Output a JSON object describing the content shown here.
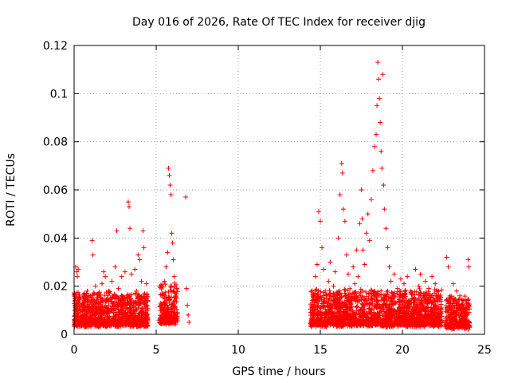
{
  "chart_data": {
    "type": "scatter",
    "title": "Day 016 of 2026, Rate Of TEC Index for receiver djig",
    "xlabel": "GPS time / hours",
    "ylabel": "ROTI / TECUs",
    "xlim": [
      0,
      25
    ],
    "ylim": [
      0,
      0.12
    ],
    "xticks": [
      0,
      5,
      10,
      15,
      20,
      25
    ],
    "xtick_labels": [
      "0",
      "5",
      "10",
      "15",
      "20",
      "25"
    ],
    "yticks": [
      0,
      0.02,
      0.04,
      0.06,
      0.08,
      0.1,
      0.12
    ],
    "ytick_labels": [
      "0",
      "0.02",
      "0.04",
      "0.06",
      "0.08",
      "0.1",
      "0.12"
    ],
    "grid": true,
    "marker": "+",
    "color": "#ff0000",
    "series": [
      {
        "name": "ROTI",
        "points": [
          [
            0.1,
            0.028
          ],
          [
            0.15,
            0.026
          ],
          [
            0.2,
            0.024
          ],
          [
            0.25,
            0.027
          ],
          [
            0.1,
            0.012
          ],
          [
            0.2,
            0.008
          ],
          [
            0.3,
            0.015
          ],
          [
            0.4,
            0.005
          ],
          [
            0.5,
            0.01
          ],
          [
            0.6,
            0.014
          ],
          [
            0.7,
            0.007
          ],
          [
            0.8,
            0.018
          ],
          [
            0.9,
            0.011
          ],
          [
            1.0,
            0.016
          ],
          [
            1.1,
            0.039
          ],
          [
            1.15,
            0.033
          ],
          [
            1.2,
            0.012
          ],
          [
            1.3,
            0.02
          ],
          [
            1.4,
            0.009
          ],
          [
            1.5,
            0.017
          ],
          [
            1.6,
            0.013
          ],
          [
            1.7,
            0.021
          ],
          [
            1.8,
            0.026
          ],
          [
            1.9,
            0.024
          ],
          [
            2.0,
            0.011
          ],
          [
            2.1,
            0.018
          ],
          [
            2.2,
            0.015
          ],
          [
            2.3,
            0.022
          ],
          [
            2.4,
            0.01
          ],
          [
            2.5,
            0.028
          ],
          [
            2.6,
            0.043
          ],
          [
            2.7,
            0.019
          ],
          [
            2.8,
            0.014
          ],
          [
            2.9,
            0.024
          ],
          [
            3.0,
            0.012
          ],
          [
            3.1,
            0.026
          ],
          [
            3.2,
            0.016
          ],
          [
            3.3,
            0.055
          ],
          [
            3.35,
            0.053
          ],
          [
            3.4,
            0.044
          ],
          [
            3.5,
            0.025
          ],
          [
            3.6,
            0.013
          ],
          [
            3.7,
            0.027
          ],
          [
            3.8,
            0.018
          ],
          [
            3.9,
            0.033
          ],
          [
            4.0,
            0.031
          ],
          [
            4.1,
            0.022
          ],
          [
            4.2,
            0.043
          ],
          [
            4.25,
            0.036
          ],
          [
            4.3,
            0.015
          ],
          [
            4.4,
            0.021
          ],
          [
            5.3,
            0.01
          ],
          [
            5.4,
            0.016
          ],
          [
            5.5,
            0.022
          ],
          [
            5.6,
            0.028
          ],
          [
            5.7,
            0.034
          ],
          [
            5.75,
            0.069
          ],
          [
            5.8,
            0.066
          ],
          [
            5.85,
            0.062
          ],
          [
            5.9,
            0.058
          ],
          [
            5.95,
            0.042
          ],
          [
            6.0,
            0.038
          ],
          [
            6.05,
            0.031
          ],
          [
            6.1,
            0.024
          ],
          [
            6.2,
            0.015
          ],
          [
            6.3,
            0.009
          ],
          [
            6.8,
            0.057
          ],
          [
            6.85,
            0.019
          ],
          [
            6.9,
            0.012
          ],
          [
            6.95,
            0.008
          ],
          [
            7.0,
            0.005
          ],
          [
            14.5,
            0.009
          ],
          [
            14.6,
            0.016
          ],
          [
            14.7,
            0.024
          ],
          [
            14.8,
            0.029
          ],
          [
            14.9,
            0.051
          ],
          [
            15.0,
            0.047
          ],
          [
            15.1,
            0.036
          ],
          [
            15.2,
            0.027
          ],
          [
            15.3,
            0.018
          ],
          [
            15.4,
            0.012
          ],
          [
            15.5,
            0.022
          ],
          [
            15.6,
            0.03
          ],
          [
            15.7,
            0.014
          ],
          [
            15.8,
            0.02
          ],
          [
            15.9,
            0.026
          ],
          [
            16.0,
            0.011
          ],
          [
            16.1,
            0.04
          ],
          [
            16.2,
            0.058
          ],
          [
            16.3,
            0.071
          ],
          [
            16.35,
            0.067
          ],
          [
            16.4,
            0.052
          ],
          [
            16.5,
            0.047
          ],
          [
            16.6,
            0.033
          ],
          [
            16.7,
            0.025
          ],
          [
            16.8,
            0.019
          ],
          [
            16.9,
            0.014
          ],
          [
            17.0,
            0.028
          ],
          [
            17.1,
            0.021
          ],
          [
            17.2,
            0.035
          ],
          [
            17.3,
            0.024
          ],
          [
            17.4,
            0.046
          ],
          [
            17.5,
            0.06
          ],
          [
            17.55,
            0.048
          ],
          [
            17.6,
            0.035
          ],
          [
            17.7,
            0.029
          ],
          [
            17.8,
            0.042
          ],
          [
            17.9,
            0.05
          ],
          [
            18.0,
            0.039
          ],
          [
            18.1,
            0.056
          ],
          [
            18.2,
            0.068
          ],
          [
            18.3,
            0.078
          ],
          [
            18.4,
            0.083
          ],
          [
            18.45,
            0.095
          ],
          [
            18.5,
            0.113
          ],
          [
            18.55,
            0.106
          ],
          [
            18.6,
            0.098
          ],
          [
            18.65,
            0.088
          ],
          [
            18.7,
            0.076
          ],
          [
            18.75,
            0.069
          ],
          [
            18.8,
            0.108
          ],
          [
            18.85,
            0.062
          ],
          [
            18.9,
            0.052
          ],
          [
            19.0,
            0.044
          ],
          [
            19.1,
            0.036
          ],
          [
            19.2,
            0.028
          ],
          [
            19.3,
            0.022
          ],
          [
            19.4,
            0.017
          ],
          [
            19.5,
            0.025
          ],
          [
            19.6,
            0.013
          ],
          [
            19.7,
            0.019
          ],
          [
            19.8,
            0.011
          ],
          [
            19.9,
            0.023
          ],
          [
            20.0,
            0.016
          ],
          [
            20.1,
            0.021
          ],
          [
            20.2,
            0.009
          ],
          [
            20.3,
            0.024
          ],
          [
            20.4,
            0.014
          ],
          [
            20.5,
            0.018
          ],
          [
            20.6,
            0.007
          ],
          [
            20.7,
            0.015
          ],
          [
            20.8,
            0.027
          ],
          [
            20.9,
            0.012
          ],
          [
            21.0,
            0.02
          ],
          [
            21.1,
            0.025
          ],
          [
            21.2,
            0.01
          ],
          [
            21.3,
            0.017
          ],
          [
            21.4,
            0.022
          ],
          [
            21.5,
            0.013
          ],
          [
            21.6,
            0.019
          ],
          [
            21.7,
            0.008
          ],
          [
            21.8,
            0.024
          ],
          [
            21.9,
            0.015
          ],
          [
            22.0,
            0.021
          ],
          [
            22.1,
            0.011
          ],
          [
            22.2,
            0.018
          ],
          [
            22.3,
            0.009
          ],
          [
            22.7,
            0.032
          ],
          [
            22.8,
            0.028
          ],
          [
            22.9,
            0.016
          ],
          [
            23.0,
            0.011
          ],
          [
            23.1,
            0.021
          ],
          [
            23.2,
            0.007
          ],
          [
            23.3,
            0.018
          ],
          [
            23.4,
            0.012
          ],
          [
            23.5,
            0.016
          ],
          [
            23.6,
            0.01
          ],
          [
            23.7,
            0.014
          ],
          [
            23.8,
            0.009
          ],
          [
            23.9,
            0.013
          ],
          [
            24.0,
            0.031
          ],
          [
            24.05,
            0.028
          ]
        ],
        "bands": [
          {
            "x": [
              0.0,
              4.5
            ],
            "y": [
              0.003,
              0.016
            ],
            "count": 1100
          },
          {
            "x": [
              5.2,
              6.3
            ],
            "y": [
              0.004,
              0.02
            ],
            "count": 260
          },
          {
            "x": [
              14.4,
              22.4
            ],
            "y": [
              0.003,
              0.017
            ],
            "count": 1900
          },
          {
            "x": [
              22.6,
              24.1
            ],
            "y": [
              0.002,
              0.014
            ],
            "count": 320
          }
        ]
      }
    ]
  }
}
